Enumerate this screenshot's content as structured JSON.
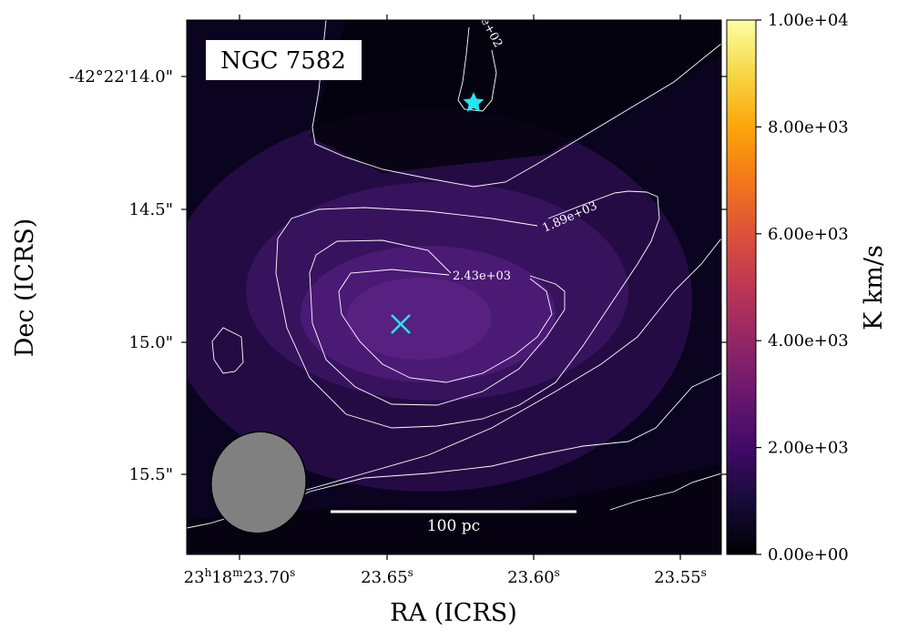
{
  "chart_data": {
    "type": "heatmap",
    "title": "NGC 7582",
    "xlabel": "RA (ICRS)",
    "ylabel": "Dec (ICRS)",
    "colorbar_label": "K km/s",
    "colormap": "inferno",
    "color_range": [
      0,
      10000
    ],
    "x_ticks": [
      {
        "h": "23",
        "hsup": "h",
        "m": "18",
        "msup": "m",
        "s": "23.70",
        "ssup": "s",
        "full": true
      },
      {
        "s": "23.65",
        "ssup": "s"
      },
      {
        "s": "23.60",
        "ssup": "s"
      },
      {
        "s": "23.55",
        "ssup": "s"
      }
    ],
    "y_ticks": [
      "-42°22'14.0\"",
      "14.5\"",
      "15.0\"",
      "15.5\""
    ],
    "colorbar_ticks": [
      "0.00e+00",
      "2.00e+03",
      "4.00e+03",
      "6.00e+03",
      "8.00e+03",
      "1.00e+04"
    ],
    "colorbar_values": [
      0,
      2000,
      4000,
      6000,
      8000,
      10000
    ],
    "contour_labels": [
      "1.89e+03",
      "2.43e+03",
      "e+02"
    ],
    "scale_bar_label": "100 pc",
    "markers": [
      {
        "kind": "cross",
        "color": "#22e6f0"
      },
      {
        "kind": "star",
        "color": "#22e6f0"
      }
    ],
    "beam": {
      "color": "#808080"
    }
  }
}
